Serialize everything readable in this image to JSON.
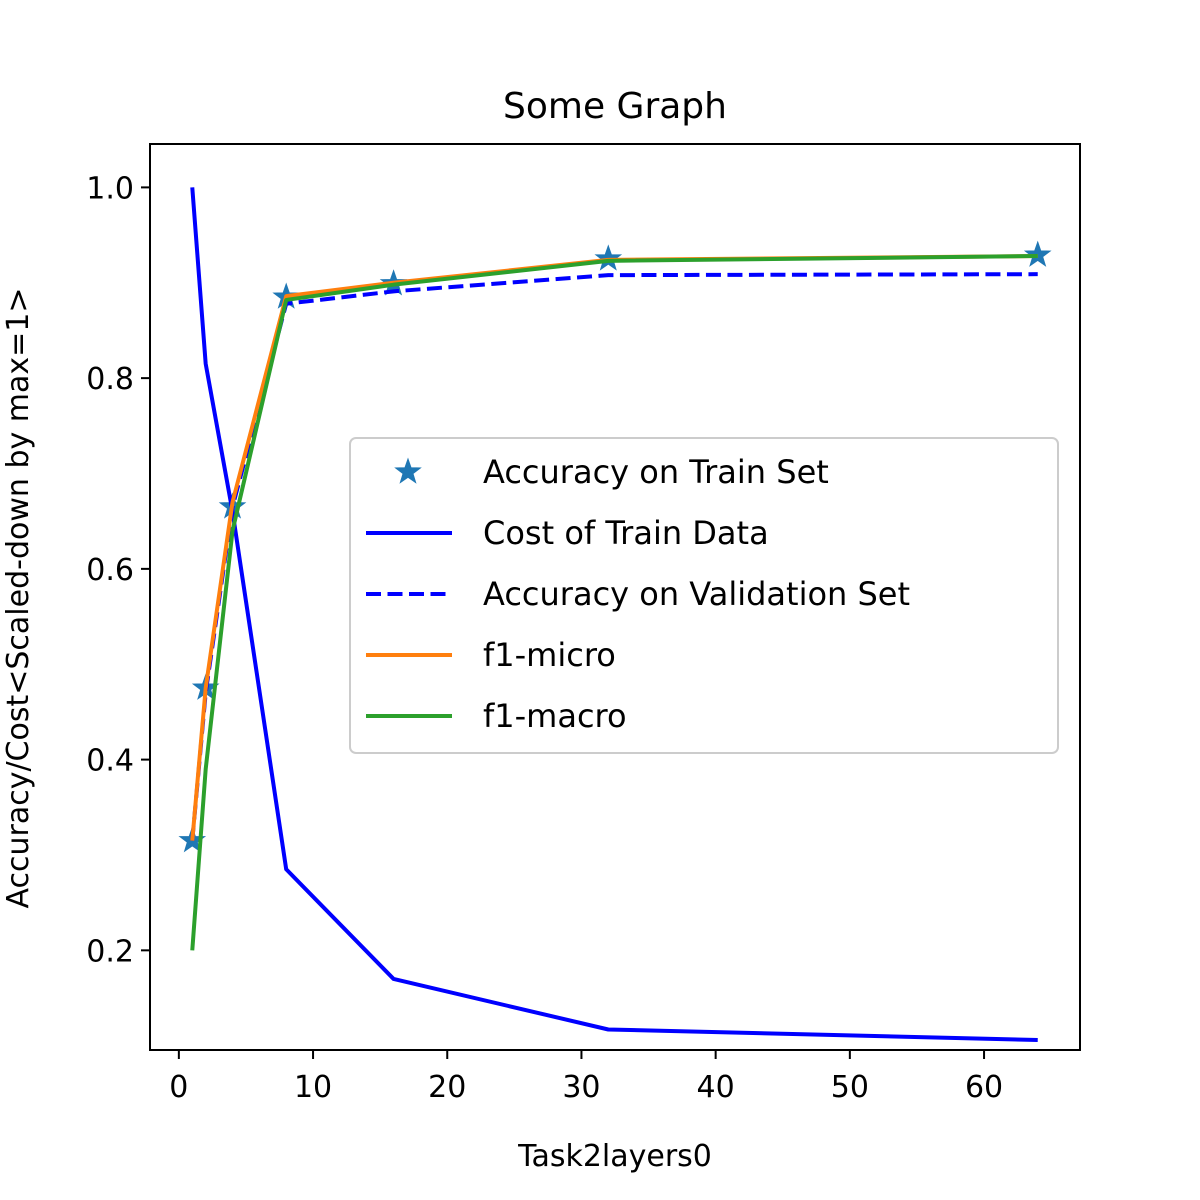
{
  "chart_data": {
    "type": "line",
    "title": "Some Graph",
    "xlabel": "Task2layers0",
    "ylabel": "Accuracy/Cost<Scaled-down by max=1>",
    "xlim": [
      -2.15,
      67.15
    ],
    "ylim": [
      0.0955,
      1.0455
    ],
    "x_ticks": [
      0,
      10,
      20,
      30,
      40,
      50,
      60
    ],
    "y_ticks": [
      0.2,
      0.4,
      0.6,
      0.8,
      1.0
    ],
    "x_tick_labels": [
      "0",
      "10",
      "20",
      "30",
      "40",
      "50",
      "60"
    ],
    "y_tick_labels": [
      "0.2",
      "0.4",
      "0.6",
      "0.8",
      "1.0"
    ],
    "grid": false,
    "legend_position": "center-right",
    "x": [
      1,
      2,
      4,
      8,
      16,
      32,
      64
    ],
    "series": [
      {
        "name": "Accuracy on Train Set",
        "style": "star-markers",
        "color": "#1f77b4",
        "values": [
          0.315,
          0.475,
          0.665,
          0.885,
          0.899,
          0.925,
          0.929
        ]
      },
      {
        "name": "Cost of Train Data",
        "style": "solid",
        "color": "#0000ff",
        "values": [
          1.0,
          0.815,
          0.66,
          0.285,
          0.17,
          0.117,
          0.106
        ]
      },
      {
        "name": "Accuracy on Validation Set",
        "style": "dashed",
        "color": "#0000ff",
        "values": [
          0.315,
          0.47,
          0.665,
          0.878,
          0.891,
          0.908,
          0.909
        ]
      },
      {
        "name": "f1-micro",
        "style": "solid",
        "color": "#ff7f0e",
        "values": [
          0.315,
          0.475,
          0.67,
          0.886,
          0.9,
          0.924,
          0.928
        ]
      },
      {
        "name": "f1-macro",
        "style": "solid",
        "color": "#2ca02c",
        "values": [
          0.2,
          0.39,
          0.64,
          0.882,
          0.898,
          0.923,
          0.928
        ]
      }
    ]
  }
}
